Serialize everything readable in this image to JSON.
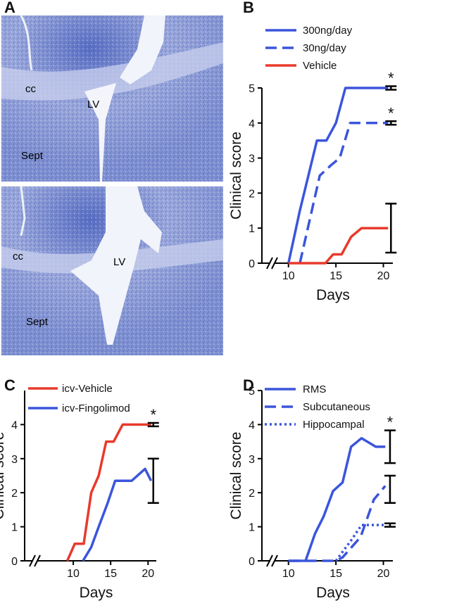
{
  "panel_a": {
    "label": "A",
    "images": [
      {
        "labels": [
          "cc",
          "LV",
          "Sept"
        ]
      },
      {
        "labels": [
          "cc",
          "LV",
          "Sept"
        ]
      }
    ]
  },
  "chart_data": [
    {
      "type": "line",
      "panel_label": "B",
      "xlabel": "Days",
      "ylabel": "Clinical score",
      "xlim": [
        7.2,
        21
      ],
      "xticks": [
        10,
        15,
        20
      ],
      "ylim": [
        0,
        5
      ],
      "yticks": [
        0,
        1,
        2,
        3,
        4,
        5
      ],
      "axis_break": true,
      "series": [
        {
          "name": "300ng/day",
          "color": "#3b55dc",
          "dash": "solid",
          "x": [
            10,
            11.2,
            13,
            14,
            15,
            16,
            20.5
          ],
          "values": [
            0,
            1.5,
            3.5,
            3.5,
            4,
            5,
            5
          ],
          "error_bar": {
            "x": 20.8,
            "value": 5,
            "error": 0.05,
            "annotation": "*"
          }
        },
        {
          "name": "30ng/day",
          "color": "#3b55dc",
          "dash": "dashed",
          "x": [
            11.2,
            13.3,
            14.5,
            15.4,
            16.5,
            20.5
          ],
          "values": [
            0,
            2.5,
            2.8,
            3,
            4,
            4
          ],
          "error_bar": {
            "x": 20.8,
            "value": 4,
            "error": 0.05,
            "annotation": "*"
          }
        },
        {
          "name": "Vehicle",
          "color": "#e83a2c",
          "dash": "solid",
          "x": [
            10,
            13.9,
            14.7,
            15.6,
            16.6,
            17.7,
            20.5
          ],
          "values": [
            0,
            0,
            0.25,
            0.25,
            0.75,
            1,
            1
          ],
          "error_bar": {
            "x": 20.8,
            "value": 1,
            "error": 0.7
          }
        }
      ]
    },
    {
      "type": "line",
      "panel_label": "C",
      "xlabel": "Days",
      "ylabel": "Clinical score",
      "xlim": [
        3.5,
        21.1
      ],
      "xticks": [
        10,
        15,
        20
      ],
      "ylim": [
        0,
        5
      ],
      "yticks": [
        0,
        1,
        2,
        3,
        4
      ],
      "axis_break": true,
      "series": [
        {
          "name": "icv-Vehicle",
          "color": "#e83a2c",
          "dash": "solid",
          "x": [
            9.2,
            10.2,
            11.4,
            12.4,
            13.4,
            14.4,
            15.4,
            16.6,
            20.4
          ],
          "values": [
            0,
            0.5,
            0.5,
            2,
            2.5,
            3.5,
            3.5,
            4,
            4
          ],
          "error_bar": {
            "x": 20.7,
            "value": 4,
            "error": 0.05,
            "annotation": "*"
          }
        },
        {
          "name": "icv-Fingolimod",
          "color": "#3b55dc",
          "dash": "solid",
          "x": [
            11.3,
            12.4,
            13.4,
            14.6,
            15.6,
            17.8,
            19.6,
            20.4
          ],
          "values": [
            0,
            0.4,
            1,
            1.7,
            2.35,
            2.35,
            2.7,
            2.35
          ],
          "error_bar": {
            "x": 20.7,
            "value": 2.35,
            "error": 0.65
          }
        }
      ]
    },
    {
      "type": "line",
      "panel_label": "D",
      "xlabel": "Days",
      "ylabel": "Clinical score",
      "xlim": [
        7.2,
        21
      ],
      "xticks": [
        10,
        15,
        20
      ],
      "ylim": [
        0,
        5
      ],
      "yticks": [
        0,
        1,
        2,
        3,
        4,
        5
      ],
      "axis_break": true,
      "series": [
        {
          "name": "RMS",
          "color": "#3b55dc",
          "dash": "solid",
          "x": [
            10,
            11.8,
            12.8,
            13.7,
            14.7,
            15.7,
            16.6,
            17.7,
            19.2,
            20.2
          ],
          "values": [
            0,
            0,
            0.8,
            1.3,
            2.05,
            2.3,
            3.35,
            3.6,
            3.35,
            3.35
          ],
          "error_bar": {
            "x": 20.7,
            "value": 3.35,
            "error": 0.48,
            "annotation": "*"
          }
        },
        {
          "name": "Subcutaneous",
          "color": "#3b55dc",
          "dash": "dashed",
          "x": [
            10,
            15,
            15.7,
            17.6,
            19,
            20.2
          ],
          "values": [
            0,
            0,
            0.1,
            0.7,
            1.8,
            2.2
          ],
          "error_bar": {
            "x": 20.7,
            "value": 2.1,
            "error": 0.4
          }
        },
        {
          "name": "Hippocampal",
          "color": "#3b55dc",
          "dash": "dotted",
          "x": [
            15,
            16.6,
            17.7,
            20.2
          ],
          "values": [
            0,
            0.6,
            1.05,
            1.05
          ],
          "error_bar": {
            "x": 20.7,
            "value": 1.05,
            "error": 0.05
          }
        }
      ]
    }
  ]
}
